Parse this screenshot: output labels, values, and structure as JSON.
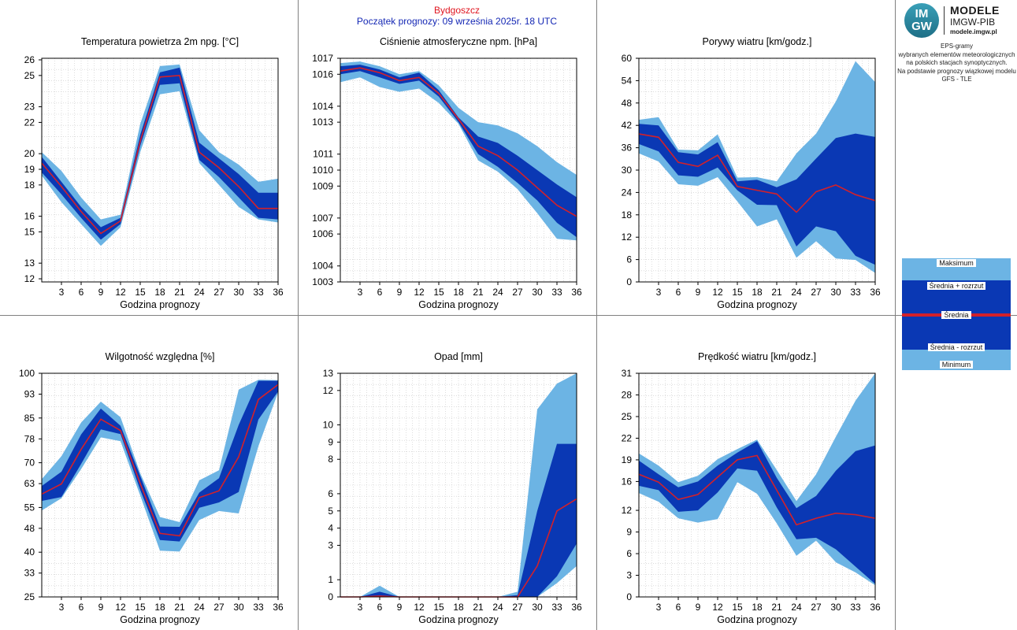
{
  "header": {
    "station": "Bydgoszcz",
    "forecast_start": "Początek prognozy: 09 września 2025r. 18 UTC"
  },
  "brand": {
    "logo_top": "IM",
    "logo_bottom": "GW",
    "title": "MODELE",
    "subtitle": "IMGW-PIB",
    "url": "modele.imgw.pl"
  },
  "description": [
    "EPS-gramy",
    "wybranych elementów meteorologicznych",
    "na polskich stacjach  synoptycznych.",
    "",
    "Na podstawie prognozy wiązkowej modelu",
    "GFS - TLE"
  ],
  "legend": {
    "max": "Maksimum",
    "mean_plus": "Średnia + rozrzut",
    "mean": "Średnia",
    "mean_minus": "Średnia - rozrzut",
    "min": "Minimum"
  },
  "colors": {
    "outer_band": "#6cb4e4",
    "inner_band": "#0a38b4",
    "mean_line": "#d3202a",
    "grid": "#c8c8c8"
  },
  "chart_data": [
    {
      "type": "area",
      "title": "Temperatura powietrza 2m npg. [°C]",
      "xlabel": "Godzina prognozy",
      "ylabel": "",
      "x": [
        0,
        3,
        6,
        9,
        12,
        15,
        18,
        21,
        24,
        27,
        30,
        33,
        36
      ],
      "xticks": [
        3,
        6,
        9,
        12,
        15,
        18,
        21,
        24,
        27,
        30,
        33,
        36
      ],
      "ylim": [
        11.8,
        26.1
      ],
      "yticks": [
        12,
        13,
        15,
        16,
        18,
        19,
        20,
        22,
        23,
        25,
        26
      ],
      "ytick_labels": [
        "12",
        "13",
        "15",
        "16",
        "18",
        "19",
        "20",
        "22",
        "23",
        "25",
        "26"
      ],
      "series": [
        {
          "name": "Maksimum",
          "values": [
            20.1,
            18.9,
            17.2,
            15.8,
            16.1,
            21.9,
            25.6,
            25.7,
            21.5,
            20.1,
            19.3,
            18.2,
            18.4
          ]
        },
        {
          "name": "Średnia + rozrzut",
          "values": [
            19.8,
            18.2,
            16.6,
            15.3,
            15.9,
            21.2,
            25.2,
            25.5,
            20.7,
            19.7,
            18.7,
            17.5,
            17.5
          ]
        },
        {
          "name": "Średnia",
          "values": [
            19.4,
            17.9,
            16.3,
            14.9,
            15.7,
            20.8,
            24.9,
            25.0,
            20.1,
            19.1,
            17.9,
            16.5,
            16.5
          ]
        },
        {
          "name": "Średnia - rozrzut",
          "values": [
            18.8,
            17.4,
            15.9,
            14.5,
            15.5,
            20.5,
            24.4,
            24.5,
            19.6,
            18.5,
            17.2,
            15.9,
            15.8
          ]
        },
        {
          "name": "Minimum",
          "values": [
            18.6,
            16.9,
            15.5,
            14.1,
            15.3,
            20.1,
            23.8,
            24.0,
            19.4,
            18.0,
            16.6,
            15.8,
            15.6
          ]
        }
      ]
    },
    {
      "type": "area",
      "title": "Ciśnienie atmosferyczne npm. [hPa]",
      "xlabel": "Godzina prognozy",
      "ylabel": "",
      "x": [
        0,
        3,
        6,
        9,
        12,
        15,
        18,
        21,
        24,
        27,
        30,
        33,
        36
      ],
      "xticks": [
        3,
        6,
        9,
        12,
        15,
        18,
        21,
        24,
        27,
        30,
        33,
        36
      ],
      "ylim": [
        1003,
        1017
      ],
      "yticks": [
        1003,
        1004,
        1006,
        1007,
        1009,
        1010,
        1011,
        1013,
        1014,
        1016,
        1017
      ],
      "ytick_labels": [
        "1003",
        "1004",
        "1006",
        "1007",
        "1009",
        "1010",
        "1011",
        "1013",
        "1014",
        "1016",
        "1017"
      ],
      "series": [
        {
          "name": "Maksimum",
          "values": [
            1016.7,
            1016.8,
            1016.5,
            1016.0,
            1016.2,
            1015.3,
            1013.9,
            1013.0,
            1012.8,
            1012.3,
            1011.5,
            1010.5,
            1009.7
          ]
        },
        {
          "name": "Średnia + rozrzut",
          "values": [
            1016.5,
            1016.6,
            1016.3,
            1015.8,
            1016.1,
            1015.0,
            1013.3,
            1012.1,
            1011.7,
            1010.9,
            1010.0,
            1009.1,
            1008.3
          ]
        },
        {
          "name": "Średnia",
          "values": [
            1016.2,
            1016.4,
            1016.1,
            1015.6,
            1015.8,
            1014.8,
            1013.2,
            1011.5,
            1010.9,
            1010.0,
            1008.9,
            1007.8,
            1007.1
          ]
        },
        {
          "name": "Średnia - rozrzut",
          "values": [
            1016.0,
            1016.2,
            1015.8,
            1015.4,
            1015.6,
            1014.6,
            1013.0,
            1011.0,
            1010.2,
            1009.2,
            1008.1,
            1006.7,
            1005.8
          ]
        },
        {
          "name": "Minimum",
          "values": [
            1015.5,
            1015.8,
            1015.2,
            1014.9,
            1015.1,
            1014.2,
            1012.9,
            1010.6,
            1009.9,
            1008.8,
            1007.3,
            1005.7,
            1005.6
          ]
        }
      ]
    },
    {
      "type": "area",
      "title": "Porywy wiatru [km/godz.]",
      "xlabel": "Godzina prognozy",
      "ylabel": "",
      "x": [
        0,
        3,
        6,
        9,
        12,
        15,
        18,
        21,
        24,
        27,
        30,
        33,
        36
      ],
      "xticks": [
        3,
        6,
        9,
        12,
        15,
        18,
        21,
        24,
        27,
        30,
        33,
        36
      ],
      "ylim": [
        0,
        60
      ],
      "yticks": [
        0,
        6,
        12,
        18,
        24,
        30,
        36,
        42,
        48,
        54,
        60
      ],
      "ytick_labels": [
        "0",
        "6",
        "12",
        "18",
        "24",
        "30",
        "36",
        "42",
        "48",
        "54",
        "60"
      ],
      "series": [
        {
          "name": "Maksimum",
          "values": [
            43.5,
            44.2,
            35.5,
            35.3,
            39.6,
            28.0,
            28.1,
            27.0,
            34.5,
            39.8,
            48.4,
            59.2,
            53.6
          ]
        },
        {
          "name": "Średnia + rozrzut",
          "values": [
            42.4,
            42.0,
            34.8,
            34.2,
            37.5,
            27.0,
            27.4,
            25.4,
            27.5,
            33.1,
            38.6,
            39.8,
            38.9
          ]
        },
        {
          "name": "Średnia",
          "values": [
            39.7,
            38.8,
            32.1,
            31.0,
            34.0,
            25.6,
            24.6,
            23.6,
            18.7,
            24.2,
            26.0,
            23.4,
            21.8
          ]
        },
        {
          "name": "Średnia - rozrzut",
          "values": [
            37.0,
            35.0,
            28.6,
            28.2,
            30.7,
            24.6,
            20.7,
            20.6,
            9.5,
            14.9,
            13.6,
            7.0,
            4.6
          ]
        },
        {
          "name": "Minimum",
          "values": [
            34.5,
            32.3,
            26.2,
            25.8,
            28.1,
            21.6,
            14.9,
            16.8,
            6.5,
            10.9,
            6.3,
            5.9,
            2.4
          ]
        }
      ]
    },
    {
      "type": "area",
      "title": "Wilgotność względna [%]",
      "xlabel": "Godzina prognozy",
      "ylabel": "",
      "x": [
        0,
        3,
        6,
        9,
        12,
        15,
        18,
        21,
        24,
        27,
        30,
        33,
        36
      ],
      "xticks": [
        3,
        6,
        9,
        12,
        15,
        18,
        21,
        24,
        27,
        30,
        33,
        36
      ],
      "ylim": [
        25,
        100
      ],
      "yticks": [
        25,
        33,
        40,
        48,
        55,
        63,
        70,
        78,
        85,
        93,
        100
      ],
      "ytick_labels": [
        "25",
        "33",
        "40",
        "48",
        "55",
        "63",
        "70",
        "78",
        "85",
        "93",
        "100"
      ],
      "series": [
        {
          "name": "Maksimum",
          "values": [
            64.5,
            72.2,
            83.5,
            90.5,
            85.3,
            66.5,
            51.8,
            50.1,
            64.1,
            67.5,
            94.5,
            97.8,
            97.7
          ]
        },
        {
          "name": "Średnia + rozrzut",
          "values": [
            62.2,
            67.0,
            79.5,
            88.2,
            82.4,
            65.6,
            48.6,
            48.5,
            60.0,
            64.8,
            82.7,
            97.5,
            97.5
          ]
        },
        {
          "name": "Średnia",
          "values": [
            59.5,
            62.9,
            74.5,
            84.6,
            80.8,
            63.0,
            46.3,
            45.5,
            58.3,
            60.6,
            72.0,
            91.2,
            96.2
          ]
        },
        {
          "name": "Średnia - rozrzut",
          "values": [
            57.2,
            58.5,
            69.6,
            81.2,
            79.6,
            60.9,
            44.1,
            43.6,
            54.9,
            56.7,
            60.2,
            84.5,
            93.9
          ]
        },
        {
          "name": "Minimum",
          "values": [
            54.0,
            58.1,
            67.9,
            78.5,
            77.2,
            59.0,
            40.5,
            40.2,
            50.8,
            53.8,
            53.0,
            75.5,
            93.6
          ]
        }
      ]
    },
    {
      "type": "area",
      "title": "Opad [mm]",
      "xlabel": "Godzina prognozy",
      "ylabel": "",
      "x": [
        0,
        3,
        6,
        9,
        12,
        15,
        18,
        21,
        24,
        27,
        30,
        33,
        36
      ],
      "xticks": [
        3,
        6,
        9,
        12,
        15,
        18,
        21,
        24,
        27,
        30,
        33,
        36
      ],
      "ylim": [
        0,
        13
      ],
      "yticks": [
        0,
        1,
        3,
        4,
        5,
        6,
        8,
        9,
        10,
        12,
        13
      ],
      "ytick_labels": [
        "0",
        "1",
        "3",
        "4",
        "5",
        "6",
        "8",
        "9",
        "10",
        "12",
        "13"
      ],
      "series": [
        {
          "name": "Maksimum",
          "values": [
            0,
            0,
            0.65,
            0,
            0,
            0,
            0,
            0,
            0,
            0.3,
            10.9,
            12.4,
            13.0
          ]
        },
        {
          "name": "Średnia + rozrzut",
          "values": [
            0,
            0,
            0.3,
            0,
            0,
            0,
            0,
            0,
            0,
            0.1,
            5.0,
            8.9,
            8.9
          ]
        },
        {
          "name": "Średnia",
          "values": [
            0,
            0,
            0.05,
            0,
            0,
            0,
            0,
            0,
            0,
            0,
            1.8,
            5.0,
            5.7
          ]
        },
        {
          "name": "Średnia - rozrzut",
          "values": [
            0,
            0,
            0,
            0,
            0,
            0,
            0,
            0,
            0,
            0,
            0,
            1.2,
            3.1
          ]
        },
        {
          "name": "Minimum",
          "values": [
            0,
            0,
            0,
            0,
            0,
            0,
            0,
            0,
            0,
            0,
            0,
            0.8,
            1.8
          ]
        }
      ]
    },
    {
      "type": "area",
      "title": "Prędkość wiatru [km/godz.]",
      "xlabel": "Godzina prognozy",
      "ylabel": "",
      "x": [
        0,
        3,
        6,
        9,
        12,
        15,
        18,
        21,
        24,
        27,
        30,
        33,
        36
      ],
      "xticks": [
        3,
        6,
        9,
        12,
        15,
        18,
        21,
        24,
        27,
        30,
        33,
        36
      ],
      "ylim": [
        0,
        31
      ],
      "yticks": [
        0,
        3,
        6,
        9,
        12,
        16,
        19,
        22,
        25,
        28,
        31
      ],
      "ytick_labels": [
        "0",
        "3",
        "6",
        "9",
        "12",
        "16",
        "19",
        "22",
        "25",
        "28",
        "31"
      ],
      "series": [
        {
          "name": "Maksimum",
          "values": [
            19.9,
            18.2,
            15.9,
            16.8,
            19.1,
            20.5,
            21.8,
            17.6,
            13.3,
            17.0,
            22.2,
            27.2,
            31.0
          ]
        },
        {
          "name": "Średnia + rozrzut",
          "values": [
            18.9,
            17.0,
            15.2,
            16.0,
            18.2,
            20.0,
            21.6,
            16.5,
            12.3,
            14.0,
            17.5,
            20.2,
            21.0
          ]
        },
        {
          "name": "Średnia",
          "values": [
            17.0,
            15.9,
            13.5,
            14.2,
            16.6,
            19.0,
            19.6,
            14.8,
            10.0,
            10.9,
            11.6,
            11.4,
            10.9
          ]
        },
        {
          "name": "Średnia - rozrzut",
          "values": [
            15.4,
            14.8,
            11.8,
            12.0,
            14.5,
            17.8,
            17.5,
            12.4,
            8.0,
            8.2,
            6.6,
            4.2,
            1.8
          ]
        },
        {
          "name": "Minimum",
          "values": [
            14.4,
            13.2,
            10.9,
            10.3,
            10.8,
            15.9,
            14.3,
            10.2,
            5.7,
            7.8,
            4.8,
            3.4,
            1.6
          ]
        }
      ]
    }
  ]
}
